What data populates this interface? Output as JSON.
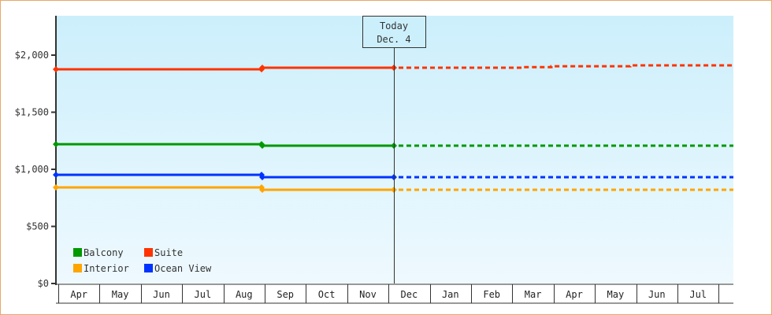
{
  "chart_data": {
    "type": "line",
    "title": "",
    "xlabel": "",
    "ylabel": "",
    "ylim": [
      0,
      2300
    ],
    "yticks": [
      {
        "value": 0,
        "label": "$0"
      },
      {
        "value": 500,
        "label": "$500"
      },
      {
        "value": 1000,
        "label": "$1,000"
      },
      {
        "value": 1500,
        "label": "$1,500"
      },
      {
        "value": 2000,
        "label": "$2,000"
      }
    ],
    "categories": [
      "Apr",
      "May",
      "Jun",
      "Jul",
      "Aug",
      "Sep",
      "Oct",
      "Nov",
      "Dec",
      "Jan",
      "Feb",
      "Mar",
      "Apr",
      "May",
      "Jun",
      "Jul"
    ],
    "today_marker": {
      "line1": "Today",
      "line2": "Dec. 4",
      "position": "Dec"
    },
    "legend_position": "bottom-left inside plot",
    "grid": false,
    "series": [
      {
        "name": "Balcony",
        "color": "#009900",
        "points": [
          {
            "x": "Apr",
            "y": 1220
          },
          {
            "x": "Aug",
            "y": 1220
          },
          {
            "x": "Aug",
            "y": 1207
          },
          {
            "x": "Dec 4",
            "y": 1207
          }
        ],
        "forecast": [
          {
            "x": "Dec 4",
            "y": 1207
          },
          {
            "x": "Jul",
            "y": 1207
          }
        ]
      },
      {
        "name": "Suite",
        "color": "#ff3300",
        "points": [
          {
            "x": "Apr",
            "y": 1876
          },
          {
            "x": "Aug",
            "y": 1876
          },
          {
            "x": "Aug",
            "y": 1890
          },
          {
            "x": "Dec 4",
            "y": 1890
          }
        ],
        "forecast": [
          {
            "x": "Dec 4",
            "y": 1890
          },
          {
            "x": "Mar",
            "y": 1895
          },
          {
            "x": "Apr",
            "y": 1903
          },
          {
            "x": "Jun",
            "y": 1910
          },
          {
            "x": "Jul",
            "y": 1917
          }
        ]
      },
      {
        "name": "Interior",
        "color": "#ffa500",
        "points": [
          {
            "x": "Apr",
            "y": 841
          },
          {
            "x": "Aug",
            "y": 841
          },
          {
            "x": "Aug",
            "y": 821
          },
          {
            "x": "Dec 4",
            "y": 821
          }
        ],
        "forecast": [
          {
            "x": "Dec 4",
            "y": 821
          },
          {
            "x": "Jul",
            "y": 821
          }
        ]
      },
      {
        "name": "Ocean View",
        "color": "#0033ff",
        "points": [
          {
            "x": "Apr",
            "y": 952
          },
          {
            "x": "Aug",
            "y": 952
          },
          {
            "x": "Aug",
            "y": 931
          },
          {
            "x": "Dec 4",
            "y": 931
          }
        ],
        "forecast": [
          {
            "x": "Dec 4",
            "y": 931
          },
          {
            "x": "Jul",
            "y": 931
          }
        ]
      }
    ]
  },
  "legend": [
    {
      "label": "Balcony",
      "color": "#009900"
    },
    {
      "label": "Suite",
      "color": "#ff3300"
    },
    {
      "label": "Interior",
      "color": "#ffa500"
    },
    {
      "label": "Ocean View",
      "color": "#0033ff"
    }
  ],
  "colors": {
    "frame_border": "#e8a868",
    "plot_bg_top": "#cceefc",
    "plot_bg_bottom": "#eef9fe",
    "axis": "#333333"
  }
}
